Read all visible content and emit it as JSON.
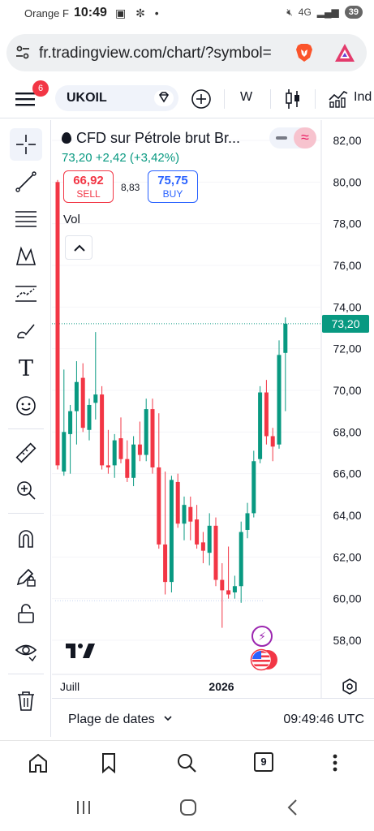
{
  "status_bar": {
    "carrier": "Orange F",
    "time": "10:49",
    "network": "4G",
    "battery": "39"
  },
  "browser": {
    "url": "fr.tradingview.com/chart/?symbol=",
    "tabs_count": "9"
  },
  "toolbar": {
    "notification_count": "6",
    "symbol": "UKOIL",
    "interval": "W",
    "indicators_label": "Ind"
  },
  "chart": {
    "title": "CFD sur Pétrole brut Br...",
    "price_line": "73,20 +2,42 (+3,42%)",
    "sell_price": "66,92",
    "sell_label": "SELL",
    "spread": "8,83",
    "buy_price": "75,75",
    "buy_label": "BUY",
    "vol_label": "Vol",
    "current_price": "73,20",
    "colors": {
      "up": "#089981",
      "down": "#f23645",
      "accent": "#2962ff"
    }
  },
  "chart_data": {
    "type": "candlestick",
    "y_ticks": [
      "82,00",
      "80,00",
      "78,00",
      "76,00",
      "74,00",
      "72,00",
      "70,00",
      "68,00",
      "66,00",
      "64,00",
      "62,00",
      "60,00",
      "58,00"
    ],
    "x_ticks": [
      "Juill",
      "2026"
    ],
    "ylim": [
      57,
      83
    ],
    "current_price": 73.2,
    "candles": [
      {
        "o": 80.0,
        "h": 80.1,
        "l": 66.2,
        "c": 66.4
      },
      {
        "o": 66.1,
        "h": 71.0,
        "l": 65.9,
        "c": 68.0
      },
      {
        "o": 67.9,
        "h": 69.3,
        "l": 66.0,
        "c": 69.0
      },
      {
        "o": 69.0,
        "h": 71.4,
        "l": 67.4,
        "c": 70.4
      },
      {
        "o": 70.6,
        "h": 71.3,
        "l": 68.0,
        "c": 68.2
      },
      {
        "o": 68.1,
        "h": 69.6,
        "l": 67.6,
        "c": 69.3
      },
      {
        "o": 69.4,
        "h": 72.8,
        "l": 68.6,
        "c": 69.8
      },
      {
        "o": 69.8,
        "h": 70.2,
        "l": 66.2,
        "c": 66.4
      },
      {
        "o": 66.4,
        "h": 68.1,
        "l": 66.0,
        "c": 66.3
      },
      {
        "o": 66.4,
        "h": 67.9,
        "l": 65.8,
        "c": 67.6
      },
      {
        "o": 67.7,
        "h": 68.7,
        "l": 66.5,
        "c": 66.7
      },
      {
        "o": 66.7,
        "h": 67.6,
        "l": 65.6,
        "c": 65.8
      },
      {
        "o": 65.8,
        "h": 67.8,
        "l": 65.4,
        "c": 67.4
      },
      {
        "o": 67.4,
        "h": 68.5,
        "l": 66.6,
        "c": 66.9
      },
      {
        "o": 66.9,
        "h": 69.6,
        "l": 66.6,
        "c": 69.1
      },
      {
        "o": 69.1,
        "h": 69.6,
        "l": 66.0,
        "c": 66.3
      },
      {
        "o": 66.3,
        "h": 68.9,
        "l": 62.4,
        "c": 62.6
      },
      {
        "o": 62.6,
        "h": 66.1,
        "l": 60.2,
        "c": 60.8
      },
      {
        "o": 60.8,
        "h": 65.9,
        "l": 60.3,
        "c": 65.7
      },
      {
        "o": 65.6,
        "h": 66.0,
        "l": 63.4,
        "c": 63.6
      },
      {
        "o": 63.6,
        "h": 64.9,
        "l": 62.8,
        "c": 64.5
      },
      {
        "o": 64.4,
        "h": 64.9,
        "l": 62.8,
        "c": 63.7
      },
      {
        "o": 63.8,
        "h": 64.5,
        "l": 62.4,
        "c": 62.6
      },
      {
        "o": 62.7,
        "h": 63.2,
        "l": 61.7,
        "c": 62.3
      },
      {
        "o": 62.2,
        "h": 64.1,
        "l": 61.6,
        "c": 63.5
      },
      {
        "o": 63.5,
        "h": 63.9,
        "l": 60.6,
        "c": 60.9
      },
      {
        "o": 60.9,
        "h": 61.7,
        "l": 58.6,
        "c": 60.4
      },
      {
        "o": 60.4,
        "h": 62.5,
        "l": 60.0,
        "c": 60.2
      },
      {
        "o": 60.3,
        "h": 61.1,
        "l": 60.0,
        "c": 60.6
      },
      {
        "o": 60.6,
        "h": 63.7,
        "l": 59.8,
        "c": 63.2
      },
      {
        "o": 63.3,
        "h": 64.6,
        "l": 62.9,
        "c": 64.1
      },
      {
        "o": 64.1,
        "h": 67.1,
        "l": 63.9,
        "c": 66.6
      },
      {
        "o": 66.7,
        "h": 70.2,
        "l": 66.5,
        "c": 69.9
      },
      {
        "o": 69.9,
        "h": 70.5,
        "l": 67.4,
        "c": 67.8
      },
      {
        "o": 67.8,
        "h": 68.2,
        "l": 66.6,
        "c": 67.3
      },
      {
        "o": 67.4,
        "h": 72.4,
        "l": 67.2,
        "c": 71.7
      },
      {
        "o": 71.8,
        "h": 73.5,
        "l": 69.0,
        "c": 73.2
      }
    ]
  },
  "bottom_bar": {
    "date_range": "Plage de dates",
    "time": "09:49:46 UTC"
  }
}
